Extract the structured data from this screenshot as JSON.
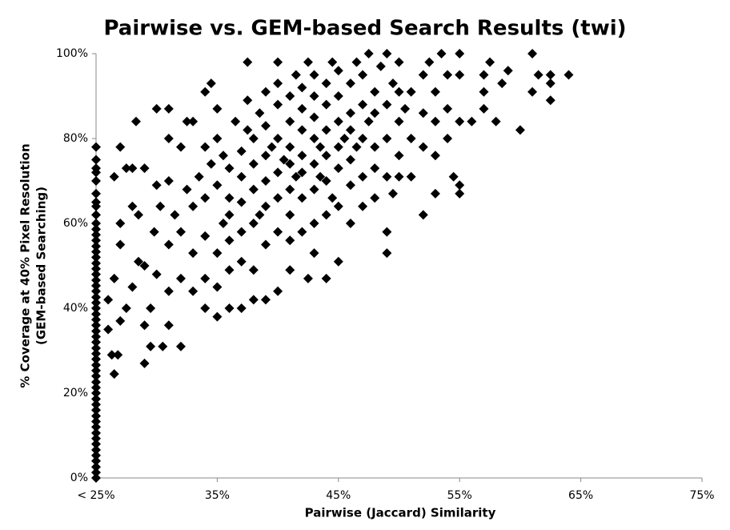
{
  "chart_data": {
    "type": "scatter",
    "title": "Pairwise vs. GEM-based Search Results (twi)",
    "x_label": "Pairwise (Jaccard) Similarity",
    "y_label": [
      "% Coverage at 40% Pixel Resolution",
      "(GEM-based Searching)"
    ],
    "color": "#000000",
    "xlim": [
      25,
      75
    ],
    "ylim": [
      0,
      100
    ],
    "xticks": [
      {
        "value": 25,
        "label": "< 25%"
      },
      {
        "value": 35,
        "label": "35%"
      },
      {
        "value": 45,
        "label": "45%"
      },
      {
        "value": 55,
        "label": "55%"
      },
      {
        "value": 65,
        "label": "65%"
      },
      {
        "value": 75,
        "label": "75%"
      }
    ],
    "yticks": [
      {
        "value": 0,
        "label": "0%"
      },
      {
        "value": 20,
        "label": "20%"
      },
      {
        "value": 40,
        "label": "40%"
      },
      {
        "value": 60,
        "label": "60%"
      },
      {
        "value": 80,
        "label": "80%"
      },
      {
        "value": 100,
        "label": "100%"
      }
    ],
    "grid": false,
    "x": [
      25,
      25,
      25,
      25,
      25,
      25,
      25,
      25,
      25,
      25,
      25,
      25,
      25,
      25,
      25,
      25,
      25,
      25,
      25,
      25,
      25,
      25,
      25,
      25,
      25,
      25,
      25,
      25,
      25,
      25,
      25,
      25,
      25,
      25,
      25,
      25,
      25,
      25,
      25,
      25,
      25,
      25,
      25,
      25,
      25,
      25,
      25,
      25,
      25,
      25,
      25,
      25,
      25,
      25,
      25,
      26,
      26.5,
      26.3,
      26.8,
      26,
      26.5,
      27,
      27,
      27.5,
      27,
      26.5,
      27,
      27.5,
      28,
      28,
      28.5,
      28.5,
      28,
      29,
      29,
      29.5,
      29.5,
      29,
      29.8,
      29,
      28.3,
      30,
      30,
      30.3,
      30,
      30.5,
      31,
      31,
      31,
      31.5,
      31,
      31,
      31,
      32,
      32,
      32,
      32.5,
      32,
      32.5,
      33,
      33,
      33,
      33.5,
      33,
      34,
      34,
      34,
      34,
      34.5,
      34,
      34,
      34.5,
      35,
      35,
      35,
      35.5,
      35,
      35,
      35,
      35.5,
      36,
      36,
      36,
      36,
      36,
      36.5,
      36,
      37,
      37,
      37,
      37,
      37,
      37,
      37.5,
      37.5,
      37.5,
      38,
      38,
      38,
      38,
      38,
      38,
      38.5,
      38.5,
      39,
      39,
      39,
      39,
      39,
      39,
      39,
      39.5,
      40,
      40,
      40,
      40,
      40,
      40,
      40,
      40,
      40.5,
      41,
      41,
      41,
      41,
      41,
      41,
      41,
      41,
      41.5,
      41.5,
      42,
      42,
      42,
      42,
      42,
      42,
      42,
      42.5,
      42.5,
      43,
      43,
      43,
      43,
      43,
      43,
      43,
      43,
      43.5,
      43.5,
      44,
      44,
      44,
      44,
      44,
      44,
      44,
      44.5,
      44.5,
      45,
      45,
      45,
      45,
      45,
      45,
      45,
      45.5,
      46,
      46,
      46,
      46,
      46,
      46,
      46.5,
      46.5,
      47,
      47,
      47,
      47,
      47,
      47.5,
      47.5,
      48,
      48,
      48,
      48,
      48,
      48.5,
      49,
      49,
      49,
      49,
      49,
      49,
      49.5,
      49.5,
      50,
      50,
      50,
      50,
      50,
      50.5,
      51,
      51,
      51,
      52,
      52,
      52,
      52,
      52.5,
      53,
      53,
      53,
      53,
      53.5,
      54,
      54,
      54,
      54.5,
      55,
      55,
      55,
      55,
      55,
      56,
      57,
      57,
      57,
      57.5,
      58,
      58.5,
      59,
      60,
      61,
      61,
      61.5,
      62.5,
      62.5,
      62.5,
      64
    ],
    "values": [
      0,
      1.3,
      2.6,
      4,
      5.3,
      6.6,
      8,
      9.3,
      10.6,
      12,
      13.3,
      14.6,
      16,
      17.3,
      18.6,
      20,
      21.3,
      22.6,
      24,
      25.3,
      26.6,
      28,
      29.3,
      30.6,
      32,
      33.3,
      34.6,
      36,
      37.3,
      38.6,
      40,
      41.3,
      42.6,
      44,
      45.3,
      46.6,
      48,
      49.3,
      50.6,
      52,
      53.3,
      54.6,
      56,
      57.3,
      58.6,
      60,
      62,
      64,
      65,
      67,
      70,
      72,
      73,
      75,
      78,
      35,
      24.5,
      29,
      29,
      42,
      47,
      37,
      55,
      40,
      60,
      71,
      78,
      73,
      73,
      64,
      62,
      51,
      45,
      36,
      27,
      31,
      40,
      50,
      58,
      73,
      84,
      87,
      69,
      64,
      48,
      31,
      36,
      44,
      55,
      62,
      70,
      87,
      80,
      31,
      47,
      58,
      68,
      78,
      84,
      44,
      53,
      64,
      71,
      84,
      40,
      47,
      57,
      66,
      74,
      78,
      91,
      93,
      38,
      45,
      53,
      60,
      69,
      80,
      87,
      76,
      40,
      49,
      56,
      62,
      73,
      84,
      66,
      40,
      51,
      58,
      65,
      71,
      77,
      82,
      89,
      98,
      42,
      49,
      60,
      68,
      74,
      80,
      86,
      62,
      42,
      55,
      64,
      70,
      76,
      83,
      91,
      78,
      44,
      58,
      66,
      72,
      80,
      88,
      93,
      98,
      75,
      49,
      56,
      62,
      68,
      74,
      78,
      84,
      90,
      95,
      71,
      58,
      66,
      72,
      76,
      82,
      87,
      92,
      98,
      47,
      53,
      60,
      68,
      74,
      80,
      85,
      90,
      95,
      78,
      71,
      47,
      62,
      70,
      76,
      82,
      88,
      93,
      98,
      66,
      51,
      64,
      73,
      78,
      84,
      90,
      96,
      80,
      60,
      69,
      75,
      82,
      86,
      93,
      98,
      78,
      64,
      71,
      80,
      88,
      95,
      100,
      84,
      66,
      73,
      78,
      86,
      91,
      97,
      53,
      58,
      71,
      80,
      88,
      100,
      93,
      67,
      71,
      76,
      84,
      91,
      98,
      87,
      71,
      80,
      91,
      62,
      78,
      86,
      95,
      98,
      67,
      76,
      84,
      91,
      100,
      80,
      87,
      95,
      71,
      67,
      69,
      84,
      100,
      95,
      84,
      87,
      91,
      95,
      98,
      84,
      93,
      96,
      82,
      91,
      100,
      95,
      89,
      93,
      95,
      95
    ]
  }
}
